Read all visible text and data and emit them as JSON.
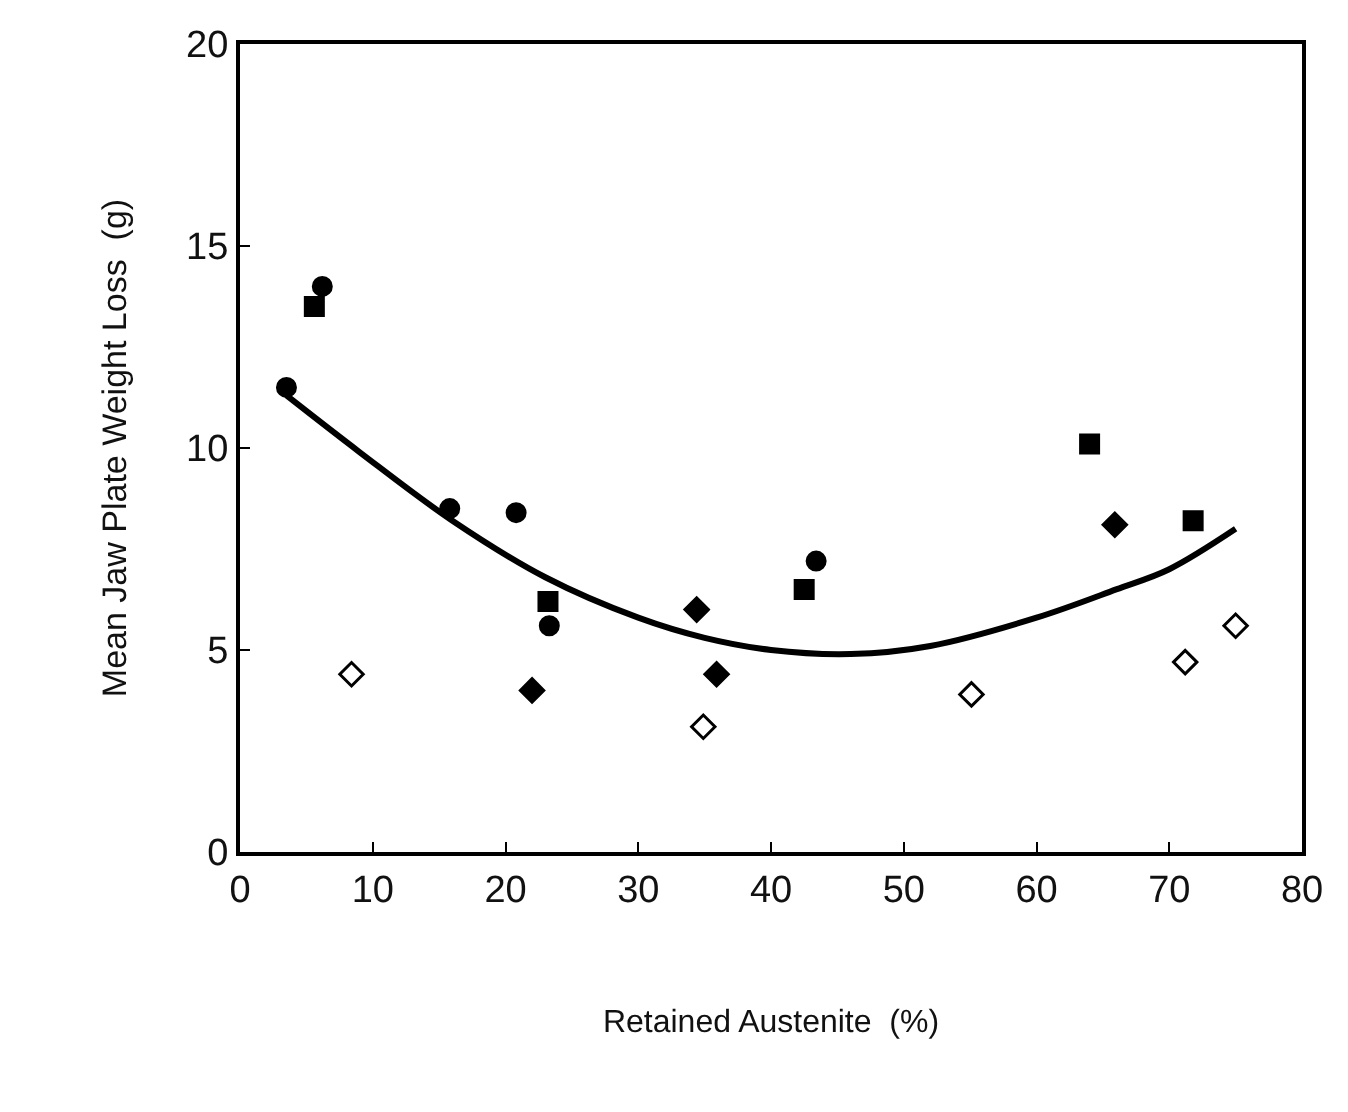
{
  "chart_data": {
    "type": "scatter",
    "xlabel": "Retained Austenite  (%)",
    "ylabel": "Mean Jaw Plate Weight Loss  (g)",
    "xlim": [
      0,
      80
    ],
    "xticks": [
      0,
      10,
      20,
      30,
      40,
      50,
      60,
      70,
      80
    ],
    "ylim": [
      0,
      20
    ],
    "yticks": [
      0,
      5,
      10,
      15,
      20
    ],
    "legend": false,
    "series": [
      {
        "color": "#000000",
        "marker": "circle",
        "x": [
          3.5,
          6.2,
          15.8,
          20.8,
          23.3,
          43.4
        ],
        "values": [
          11.5,
          14.0,
          8.5,
          8.4,
          5.6,
          7.2
        ]
      },
      {
        "color": "#000000",
        "marker": "square",
        "x": [
          5.6,
          23.2,
          42.5,
          64.0,
          71.8
        ],
        "values": [
          13.5,
          6.2,
          6.5,
          10.1,
          8.2
        ]
      },
      {
        "color": "#000000",
        "marker": "diamond",
        "x": [
          22.0,
          34.4,
          35.9,
          65.9
        ],
        "values": [
          4.0,
          6.0,
          4.4,
          8.1
        ]
      },
      {
        "color": "#ffffff",
        "marker": "diamond",
        "x": [
          8.4,
          34.9,
          55.1,
          71.2,
          75.0
        ],
        "values": [
          4.4,
          3.1,
          3.9,
          4.7,
          5.6
        ]
      },
      {
        "type": "line",
        "color": "#000000",
        "marker": "none",
        "x": [
          3.5,
          9,
          16,
          23,
          30,
          35,
          40,
          46,
          52,
          60,
          66,
          70,
          75
        ],
        "values": [
          11.3,
          9.9,
          8.2,
          6.8,
          5.8,
          5.3,
          5.0,
          4.9,
          5.1,
          5.8,
          6.5,
          7.0,
          8.0
        ]
      }
    ]
  }
}
